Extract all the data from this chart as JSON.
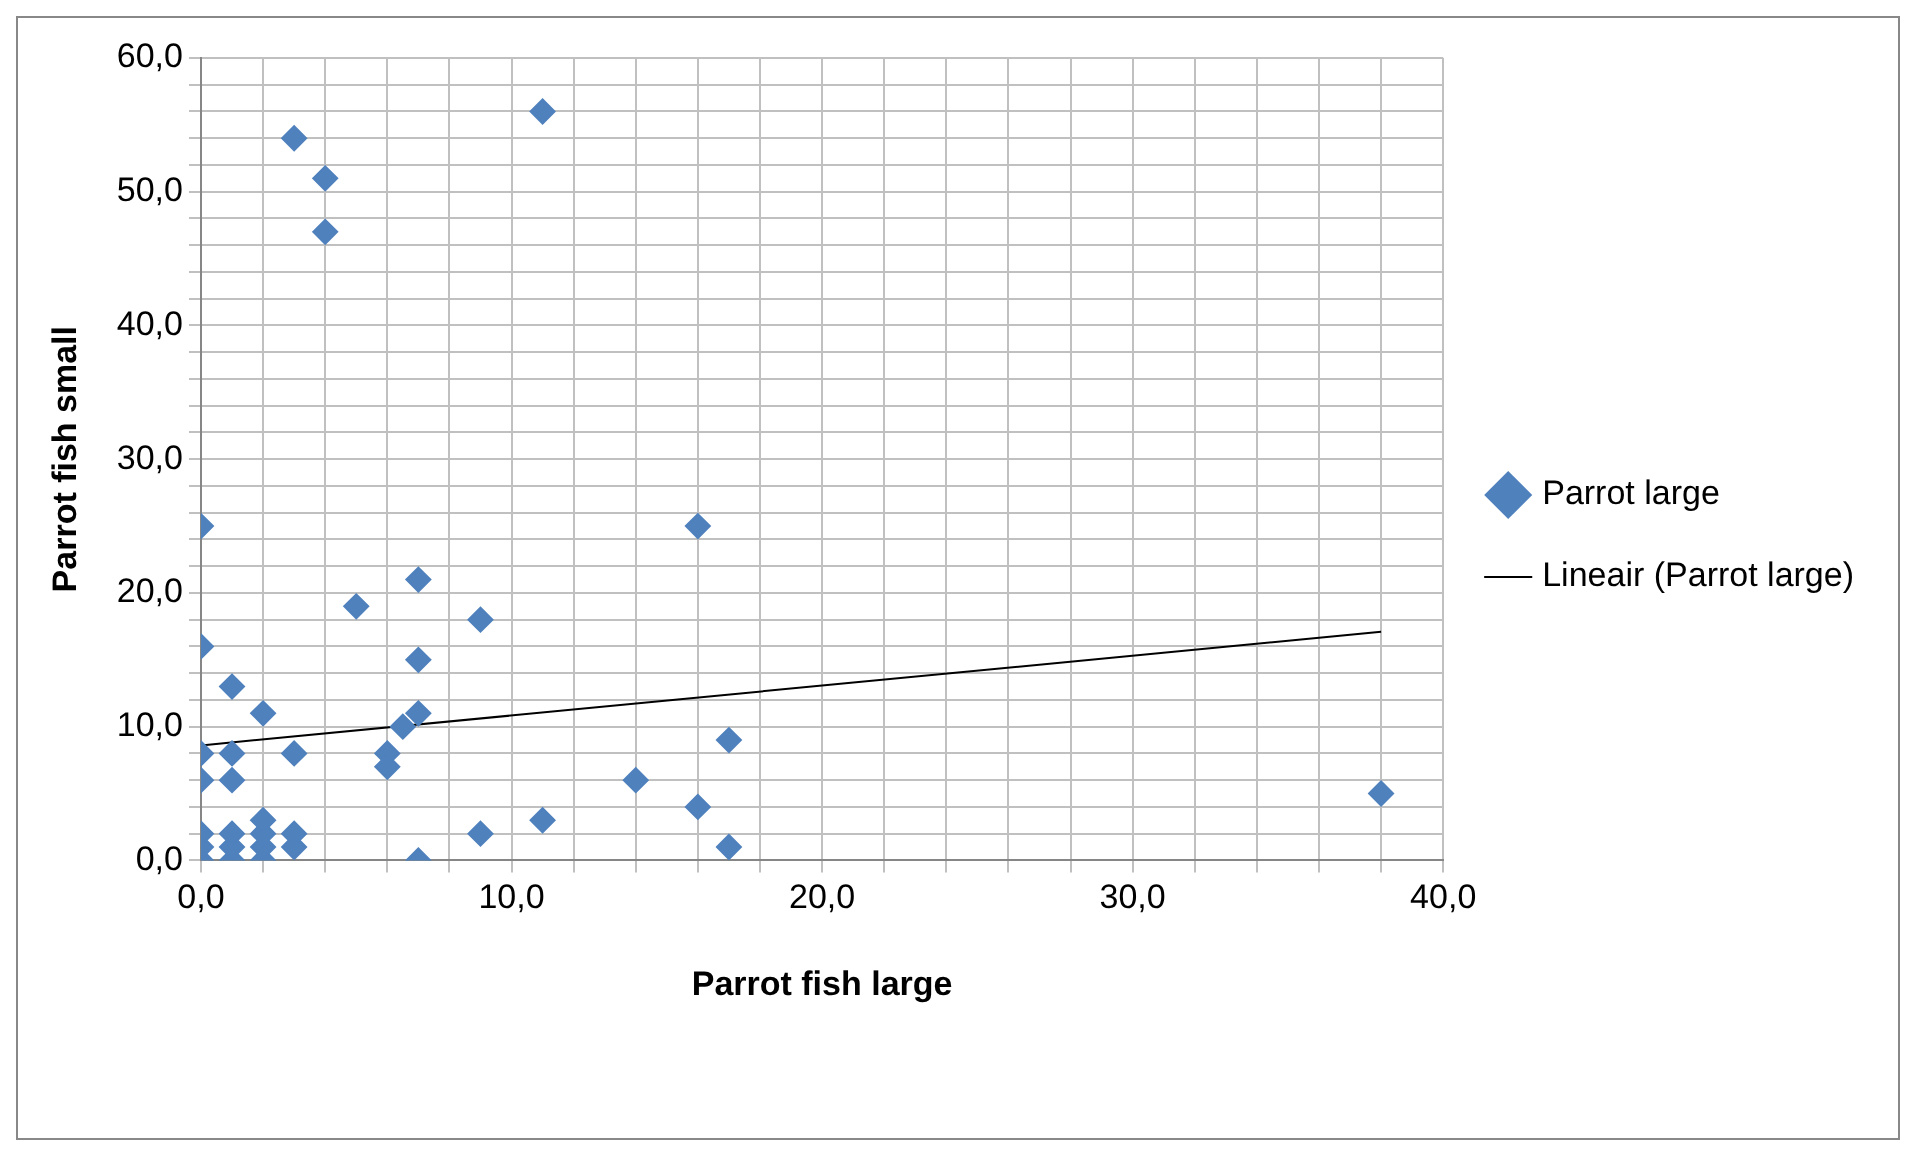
{
  "chart_data": {
    "type": "scatter",
    "xlabel": "Parrot fish large",
    "ylabel": "Parrot fish small",
    "legend": "right",
    "grid": true,
    "marker": "diamond",
    "xlim": [
      0,
      40
    ],
    "ylim": [
      0,
      60
    ],
    "xticks": [
      {
        "value": 0,
        "label": "0,0"
      },
      {
        "value": 2,
        "label": null
      },
      {
        "value": 4,
        "label": null
      },
      {
        "value": 6,
        "label": null
      },
      {
        "value": 8,
        "label": null
      },
      {
        "value": 10,
        "label": "10,0"
      },
      {
        "value": 12,
        "label": null
      },
      {
        "value": 14,
        "label": null
      },
      {
        "value": 16,
        "label": null
      },
      {
        "value": 18,
        "label": null
      },
      {
        "value": 20,
        "label": "20,0"
      },
      {
        "value": 22,
        "label": null
      },
      {
        "value": 24,
        "label": null
      },
      {
        "value": 26,
        "label": null
      },
      {
        "value": 28,
        "label": null
      },
      {
        "value": 30,
        "label": "30,0"
      },
      {
        "value": 32,
        "label": null
      },
      {
        "value": 34,
        "label": null
      },
      {
        "value": 36,
        "label": null
      },
      {
        "value": 38,
        "label": null
      },
      {
        "value": 40,
        "label": "40,0"
      }
    ],
    "yticks": [
      {
        "value": 0,
        "label": "0,0"
      },
      {
        "value": 2,
        "label": null
      },
      {
        "value": 4,
        "label": null
      },
      {
        "value": 6,
        "label": null
      },
      {
        "value": 8,
        "label": null
      },
      {
        "value": 10,
        "label": "10,0"
      },
      {
        "value": 12,
        "label": null
      },
      {
        "value": 14,
        "label": null
      },
      {
        "value": 16,
        "label": null
      },
      {
        "value": 18,
        "label": null
      },
      {
        "value": 20,
        "label": "20,0"
      },
      {
        "value": 22,
        "label": null
      },
      {
        "value": 24,
        "label": null
      },
      {
        "value": 26,
        "label": null
      },
      {
        "value": 28,
        "label": null
      },
      {
        "value": 30,
        "label": "30,0"
      },
      {
        "value": 32,
        "label": null
      },
      {
        "value": 34,
        "label": null
      },
      {
        "value": 36,
        "label": null
      },
      {
        "value": 38,
        "label": null
      },
      {
        "value": 40,
        "label": "40,0"
      },
      {
        "value": 42,
        "label": null
      },
      {
        "value": 44,
        "label": null
      },
      {
        "value": 46,
        "label": null
      },
      {
        "value": 48,
        "label": null
      },
      {
        "value": 50,
        "label": "50,0"
      },
      {
        "value": 52,
        "label": null
      },
      {
        "value": 54,
        "label": null
      },
      {
        "value": 56,
        "label": null
      },
      {
        "value": 58,
        "label": null
      },
      {
        "value": 60,
        "label": "60,0"
      }
    ],
    "series": [
      {
        "name": "Parrot large",
        "color": "#4f81bd",
        "x": [
          3,
          11,
          4,
          4,
          0,
          16,
          7,
          5,
          9,
          0,
          7,
          1,
          2,
          7,
          6.5,
          6,
          6,
          0,
          1,
          0,
          1,
          3,
          17,
          14,
          16,
          9,
          11,
          17,
          7,
          38,
          0,
          0,
          0,
          1,
          1,
          1,
          2,
          2,
          2,
          2,
          3,
          3
        ],
        "values": [
          54,
          56,
          51,
          47,
          25,
          25,
          21,
          19,
          18,
          16,
          15,
          13,
          11,
          11,
          10,
          8,
          7,
          8,
          8,
          6,
          6,
          8,
          9,
          6,
          4,
          2,
          3,
          1,
          0,
          5,
          0,
          1,
          2,
          0,
          1,
          2,
          0,
          1,
          2,
          3,
          1,
          2
        ]
      },
      {
        "name": "Lineair (Parrot large)",
        "type": "line",
        "color": "#000000",
        "marker": "none",
        "x": [
          0,
          38
        ],
        "values": [
          8.6,
          17.1
        ]
      }
    ]
  }
}
